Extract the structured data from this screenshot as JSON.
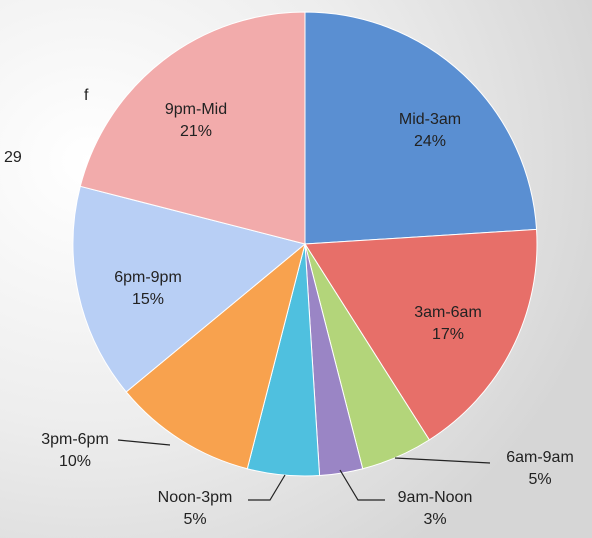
{
  "chart_data": {
    "type": "pie",
    "categories": [
      "Mid-3am",
      "3am-6am",
      "6am-9am",
      "9am-Noon",
      "Noon-3pm",
      "3pm-6pm",
      "6pm-9pm",
      "9pm-Mid"
    ],
    "values": [
      24,
      17,
      5,
      3,
      5,
      10,
      15,
      21
    ],
    "value_labels": [
      "24%",
      "17%",
      "5%",
      "3%",
      "5%",
      "10%",
      "15%",
      "21%"
    ],
    "colors": [
      "#5a8fd2",
      "#e76f69",
      "#b3d57a",
      "#9a85c5",
      "#4fc0df",
      "#f8a24e",
      "#b8cff5",
      "#f2abab"
    ],
    "annotations": [
      "f",
      "29"
    ]
  }
}
